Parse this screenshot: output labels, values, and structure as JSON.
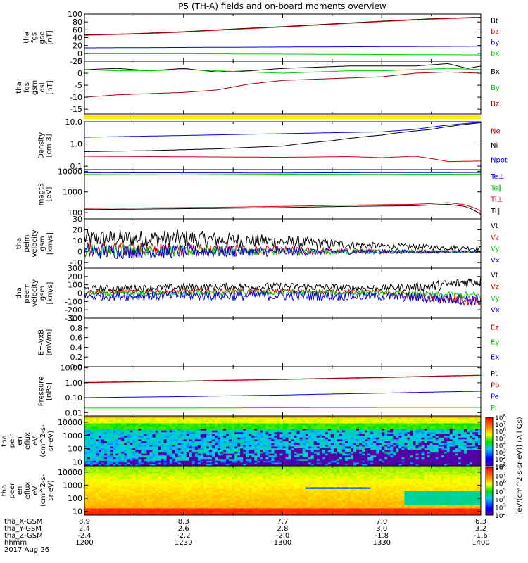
{
  "title": "P5 (TH-A) fields and on-board moments overview",
  "colors": {
    "black": "#000000",
    "red": "#d40000",
    "blue": "#0000ee",
    "green": "#00cc00",
    "darkred": "#a00000",
    "yellow": "#ffee00"
  },
  "footer": {
    "row_labels": [
      "tha_X-GSM",
      "tha_Y-GSM",
      "tha_Z-GSM",
      "hhmm",
      "2017 Aug 26"
    ],
    "columns": [
      [
        "8.9",
        "2.4",
        "-2.4",
        "1200"
      ],
      [
        "8.3",
        "2.6",
        "-2.2",
        "1230"
      ],
      [
        "7.7",
        "2.8",
        "-2.0",
        "1300"
      ],
      [
        "7.0",
        "3.0",
        "-1.8",
        "1330"
      ],
      [
        "6.3",
        "3.2",
        "-1.6",
        "1400"
      ]
    ]
  },
  "colorbar": {
    "label": "[eV/(cm^2-s-sr-eV)] (All Qs)",
    "upper_ticks": [
      "10^8",
      "10^7",
      "10^6",
      "10^5",
      "10^4",
      "10^3",
      "10^2",
      "10^1"
    ],
    "lower_ticks": [
      "10^8",
      "10^7",
      "10^6",
      "10^5",
      "10^4",
      "10^3",
      "10^2"
    ]
  },
  "chart_data": [
    {
      "id": "fgs_gse",
      "type": "line",
      "ylabel": [
        "tha",
        "fgs",
        "gse",
        "[nT]"
      ],
      "yticks": [
        "100",
        "80",
        "60",
        "40",
        "20",
        "0",
        "-20"
      ],
      "ylim": [
        -20,
        100
      ],
      "legend": [
        "Bt",
        "bz",
        "by",
        "bx"
      ],
      "series": [
        {
          "name": "Bt",
          "color": "#000000",
          "x": [
            1200,
            1215,
            1230,
            1245,
            1300,
            1315,
            1330,
            1345,
            1400
          ],
          "values": [
            47,
            50,
            55,
            62,
            68,
            75,
            82,
            88,
            92
          ]
        },
        {
          "name": "bz",
          "color": "#d40000",
          "x": [
            1200,
            1215,
            1230,
            1245,
            1300,
            1315,
            1330,
            1345,
            1400
          ],
          "values": [
            46,
            49,
            54,
            61,
            67,
            74,
            81,
            87,
            91
          ]
        },
        {
          "name": "by",
          "color": "#0000ee",
          "x": [
            1200,
            1230,
            1300,
            1330,
            1400
          ],
          "values": [
            14,
            15,
            16,
            17,
            18
          ]
        },
        {
          "name": "bx",
          "color": "#00cc00",
          "x": [
            1200,
            1230,
            1300,
            1330,
            1400
          ],
          "values": [
            -1,
            -1,
            -2,
            -3,
            -4
          ]
        }
      ]
    },
    {
      "id": "fgs_gsm",
      "type": "line",
      "ylabel": [
        "tha",
        "fgs",
        "gsm",
        "dsl",
        "[nT]"
      ],
      "yticks": [
        "5",
        "0",
        "-5",
        "-10",
        "-15"
      ],
      "ylim": [
        -17,
        5
      ],
      "legend": [
        "Bx",
        "By",
        "Bz"
      ],
      "series": [
        {
          "name": "Bx",
          "color": "#000000",
          "x": [
            1200,
            1210,
            1220,
            1230,
            1240,
            1250,
            1300,
            1310,
            1320,
            1330,
            1340,
            1350,
            1356,
            1400
          ],
          "values": [
            1.5,
            2.0,
            1.0,
            2.0,
            0.5,
            1.0,
            2.0,
            2.5,
            3.0,
            3.0,
            3.0,
            4.0,
            2.0,
            3.0
          ]
        },
        {
          "name": "By",
          "color": "#00cc00",
          "x": [
            1200,
            1210,
            1220,
            1230,
            1240,
            1250,
            1300,
            1310,
            1320,
            1330,
            1340,
            1350,
            1400
          ],
          "values": [
            1.5,
            1.0,
            1.0,
            1.5,
            1.0,
            0.5,
            0.0,
            0.5,
            1.0,
            1.0,
            1.5,
            2.0,
            1.5
          ]
        },
        {
          "name": "Bz",
          "color": "#a00000",
          "x": [
            1200,
            1210,
            1220,
            1230,
            1240,
            1250,
            1300,
            1310,
            1320,
            1330,
            1340,
            1350,
            1400
          ],
          "values": [
            -10,
            -9,
            -8.5,
            -8,
            -7,
            -4.5,
            -3,
            -2.5,
            -2,
            -1.5,
            0,
            0.5,
            0
          ]
        }
      ]
    },
    {
      "id": "density",
      "type": "line",
      "ylog": true,
      "ylabel": [
        "Density",
        "[cm-3]"
      ],
      "yticks": [
        "10.0",
        "1.0",
        "0.1"
      ],
      "ylim": [
        0.07,
        10
      ],
      "legend": [
        "Ne",
        "Ni",
        "Npot"
      ],
      "series": [
        {
          "name": "Ne",
          "color": "#d40000",
          "x": [
            1200,
            1220,
            1240,
            1300,
            1320,
            1330,
            1340,
            1350,
            1400
          ],
          "values": [
            0.28,
            0.27,
            0.26,
            0.25,
            0.27,
            0.24,
            0.28,
            0.16,
            0.17
          ]
        },
        {
          "name": "Ni",
          "color": "#000000",
          "x": [
            1200,
            1220,
            1240,
            1300,
            1315,
            1330,
            1345,
            1400
          ],
          "values": [
            0.45,
            0.5,
            0.6,
            0.8,
            1.4,
            2.5,
            4.5,
            9.0
          ]
        },
        {
          "name": "Npot",
          "color": "#0000ee",
          "x": [
            1200,
            1230,
            1300,
            1330,
            1340,
            1400
          ],
          "values": [
            2.0,
            2.4,
            2.9,
            3.5,
            4.5,
            9.5
          ]
        }
      ]
    },
    {
      "id": "magt3",
      "type": "line",
      "ylog": true,
      "ylabel": [
        "magt3",
        "[eV]"
      ],
      "yticks": [
        "10000",
        "1000",
        "100"
      ],
      "ylim": [
        50,
        12000
      ],
      "legend": [
        "Te⊥",
        "Te∥",
        "Ti⊥",
        "Ti∥"
      ],
      "series": [
        {
          "name": "Te⊥",
          "color": "#0000ee",
          "x": [
            1200,
            1230,
            1300,
            1330,
            1400
          ],
          "values": [
            8500,
            8400,
            8300,
            8600,
            8700
          ]
        },
        {
          "name": "Te∥",
          "color": "#00cc00",
          "x": [
            1200,
            1230,
            1300,
            1330,
            1400
          ],
          "values": [
            7000,
            6800,
            7200,
            7100,
            7300
          ]
        },
        {
          "name": "Ti⊥",
          "color": "#d40000",
          "x": [
            1200,
            1220,
            1240,
            1300,
            1320,
            1340,
            1350,
            1355,
            1400
          ],
          "values": [
            160,
            170,
            180,
            200,
            230,
            250,
            300,
            240,
            120
          ]
        },
        {
          "name": "Ti∥",
          "color": "#000000",
          "x": [
            1200,
            1220,
            1240,
            1300,
            1320,
            1340,
            1350,
            1355,
            1400
          ],
          "values": [
            140,
            150,
            160,
            175,
            200,
            215,
            250,
            200,
            80
          ]
        }
      ]
    },
    {
      "id": "peim_velocity",
      "type": "line",
      "noisy": true,
      "ylabel": [
        "tha",
        "peim",
        "velocity",
        "gsm",
        "[km/s]"
      ],
      "yticks": [
        "30",
        "20",
        "10",
        "0",
        "-10"
      ],
      "ylim": [
        -15,
        30
      ],
      "legend": [
        "Vt",
        "Vz",
        "Vy",
        "Vx"
      ],
      "series": [
        {
          "name": "Vt",
          "color": "#000000",
          "x": [
            1200,
            1230,
            1300,
            1330,
            1400
          ],
          "values": [
            12,
            12,
            9,
            5,
            3
          ],
          "noise": [
            8,
            8,
            6,
            3,
            2
          ]
        },
        {
          "name": "Vz",
          "color": "#d40000",
          "x": [
            1200,
            1230,
            1300,
            1330,
            1400
          ],
          "values": [
            2,
            2,
            1,
            0,
            0
          ],
          "noise": [
            7,
            6,
            4,
            2,
            1
          ]
        },
        {
          "name": "Vy",
          "color": "#00cc00",
          "x": [
            1200,
            1230,
            1300,
            1330,
            1400
          ],
          "values": [
            1,
            1,
            0,
            0,
            0
          ],
          "noise": [
            6,
            5,
            3,
            2,
            1
          ]
        },
        {
          "name": "Vx",
          "color": "#0000ee",
          "x": [
            1200,
            1230,
            1300,
            1330,
            1400
          ],
          "values": [
            0,
            0,
            0,
            0,
            0
          ],
          "noise": [
            7,
            6,
            4,
            2,
            1
          ]
        }
      ]
    },
    {
      "id": "peem_velocity",
      "type": "line",
      "noisy": true,
      "ylabel": [
        "tha",
        "peem",
        "velocity",
        "gsm",
        "[km/s]"
      ],
      "yticks": [
        "300",
        "200",
        "100",
        "0",
        "-100",
        "-200",
        "-300"
      ],
      "ylim": [
        -300,
        300
      ],
      "legend": [
        "Vt",
        "Vz",
        "Vy",
        "Vx"
      ],
      "series": [
        {
          "name": "Vt",
          "color": "#000000",
          "x": [
            1200,
            1230,
            1300,
            1330,
            1345,
            1400
          ],
          "values": [
            50,
            70,
            80,
            60,
            80,
            150
          ],
          "noise": [
            40,
            45,
            45,
            40,
            60,
            70
          ]
        },
        {
          "name": "Vz",
          "color": "#d40000",
          "x": [
            1200,
            1230,
            1300,
            1330,
            1345,
            1400
          ],
          "values": [
            10,
            20,
            20,
            10,
            -60,
            -110
          ],
          "noise": [
            30,
            35,
            35,
            30,
            60,
            70
          ]
        },
        {
          "name": "Vy",
          "color": "#00cc00",
          "x": [
            1200,
            1230,
            1300,
            1330,
            1345,
            1400
          ],
          "values": [
            -10,
            0,
            10,
            0,
            -20,
            -30
          ],
          "noise": [
            30,
            35,
            35,
            30,
            40,
            50
          ]
        },
        {
          "name": "Vx",
          "color": "#0000ee",
          "x": [
            1200,
            1230,
            1300,
            1330,
            1345,
            1400
          ],
          "values": [
            -40,
            -30,
            -30,
            -40,
            -60,
            -80
          ],
          "noise": [
            50,
            60,
            60,
            50,
            60,
            70
          ]
        }
      ]
    },
    {
      "id": "e_field",
      "type": "line",
      "ylabel": [
        "E=-VxB",
        "[mV/m]"
      ],
      "yticks": [
        "1.0",
        "0.8",
        "0.6",
        "0.4",
        "0.2",
        "0.0"
      ],
      "ylim": [
        0,
        1
      ],
      "legend": [
        "Ez",
        "Ey",
        "Ex"
      ],
      "series": [
        {
          "name": "Ez",
          "color": "#d40000",
          "x": [],
          "values": []
        },
        {
          "name": "Ey",
          "color": "#00cc00",
          "x": [],
          "values": []
        },
        {
          "name": "Ex",
          "color": "#0000ee",
          "x": [],
          "values": []
        }
      ]
    },
    {
      "id": "pressure",
      "type": "line",
      "ylog": true,
      "ylabel": [
        "Pressure",
        "[nPa]"
      ],
      "yticks": [
        "10.00",
        "1.00",
        "0.10",
        "0.01"
      ],
      "ylim": [
        0.006,
        12
      ],
      "legend": [
        "Pt",
        "Pb",
        "Pe",
        "Pi"
      ],
      "series": [
        {
          "name": "Pt",
          "color": "#000000",
          "x": [
            1200,
            1230,
            1300,
            1330,
            1400
          ],
          "values": [
            1.05,
            1.3,
            1.7,
            2.3,
            3.2
          ]
        },
        {
          "name": "Pb",
          "color": "#d40000",
          "x": [
            1200,
            1230,
            1300,
            1330,
            1400
          ],
          "values": [
            1.0,
            1.25,
            1.65,
            2.2,
            3.1
          ]
        },
        {
          "name": "Pe",
          "color": "#0000ee",
          "x": [
            1200,
            1230,
            1300,
            1330,
            1400
          ],
          "values": [
            0.1,
            0.12,
            0.15,
            0.2,
            0.27
          ]
        },
        {
          "name": "Pi",
          "color": "#00cc00",
          "x": [
            1200,
            1230,
            1300,
            1330,
            1400
          ],
          "values": [
            0.02,
            0.02,
            0.021,
            0.022,
            0.022
          ]
        }
      ]
    },
    {
      "id": "peir_eflux",
      "type": "heatmap",
      "ylog": true,
      "ylabel": [
        "tha",
        "peir",
        "en",
        "eflux",
        "eV",
        "(cm^2-s-",
        "sr-eV)"
      ],
      "yticks": [
        "10000",
        "1000",
        "100",
        "10"
      ],
      "ylim": [
        5,
        30000
      ],
      "zlim": [
        10,
        100000000.0
      ],
      "description_levels": {
        "high_energy": 10000.0,
        "low_energy": 1000.0,
        "dropout_fraction_end": 0.85
      }
    },
    {
      "id": "peer_eflux",
      "type": "heatmap",
      "ylog": true,
      "ylabel": [
        "tha",
        "peer",
        "en",
        "eflux",
        "eV",
        "(cm^2-s-",
        "sr-eV)"
      ],
      "yticks": [
        "10000",
        "1000",
        "100",
        "10"
      ],
      "ylim": [
        5,
        30000
      ],
      "zlim": [
        100,
        100000000.0
      ]
    }
  ]
}
